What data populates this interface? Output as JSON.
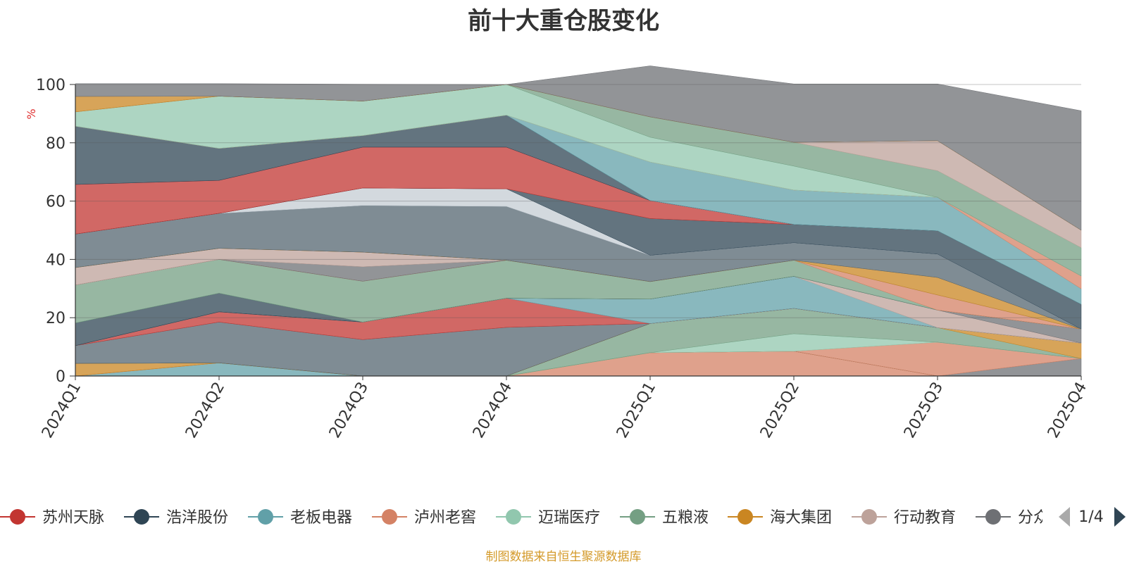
{
  "title": "前十大重仓股变化",
  "footnote": "制图数据来自恒生聚源数据库",
  "legend": {
    "items": [
      {
        "label": "苏州天脉",
        "color": "#c23531"
      },
      {
        "label": "浩洋股份",
        "color": "#2f4554"
      },
      {
        "label": "老板电器",
        "color": "#61a0a8"
      },
      {
        "label": "泸州老窖",
        "color": "#d48265"
      },
      {
        "label": "迈瑞医疗",
        "color": "#91c7ae"
      },
      {
        "label": "五粮液",
        "color": "#749f83"
      },
      {
        "label": "海大集团",
        "color": "#ca8622"
      },
      {
        "label": "行动教育",
        "color": "#bda29a"
      },
      {
        "label": "分众传媒",
        "color": "#6e7074"
      }
    ],
    "page_label": "1/4"
  },
  "chart_data": {
    "type": "area",
    "stacked": true,
    "categories": [
      "2024Q1",
      "2024Q2",
      "2024Q3",
      "2024Q4",
      "2025Q1",
      "2025Q2",
      "2025Q3",
      "2025Q4"
    ],
    "ylabel": "%",
    "ylim": [
      0,
      100
    ],
    "yticks": [
      0,
      20,
      40,
      60,
      80,
      100
    ],
    "grid": true,
    "layers": [
      {
        "color": "#61a0a8",
        "values": [
          0,
          4.5,
          0,
          0,
          0,
          0,
          0,
          0
        ]
      },
      {
        "color": "#d48265",
        "values": [
          0,
          0,
          0,
          0,
          8,
          8.5,
          0,
          0
        ]
      },
      {
        "color": "#ca8622",
        "values": [
          4.3,
          0,
          0,
          0,
          0,
          0,
          0,
          0
        ]
      },
      {
        "color": "#6e7074",
        "values": [
          0,
          0,
          0,
          0,
          0,
          0,
          0,
          6
        ]
      },
      {
        "color": "#d48265",
        "values": [
          0,
          0,
          0,
          0,
          0,
          0,
          11.6,
          0
        ]
      },
      {
        "color": "#91c7ae",
        "values": [
          0,
          0,
          0,
          0,
          0,
          6,
          0,
          0
        ]
      },
      {
        "color": "#749f83",
        "values": [
          0,
          0,
          0,
          0,
          10,
          8.7,
          5,
          0
        ]
      },
      {
        "color": "#ca8622",
        "values": [
          0,
          0,
          0,
          0,
          0,
          0,
          0,
          5.3
        ]
      },
      {
        "color": "#546570",
        "values": [
          6.1,
          14,
          12.5,
          16.7,
          0,
          0,
          0,
          0
        ]
      },
      {
        "color": "#c23531",
        "values": [
          0,
          3.5,
          6,
          10,
          0,
          0,
          0,
          0
        ]
      },
      {
        "color": "#61a0a8",
        "values": [
          0,
          0,
          0,
          0,
          8.4,
          11,
          0,
          0
        ]
      },
      {
        "color": "#bda29a",
        "values": [
          0,
          0,
          0,
          0,
          0,
          0,
          6,
          0
        ]
      },
      {
        "color": "#6e7074",
        "values": [
          0,
          0,
          0,
          0,
          0,
          0,
          0,
          4.8
        ]
      },
      {
        "color": "#2f4554",
        "values": [
          7.8,
          6.4,
          0,
          0,
          0,
          0,
          0,
          0
        ]
      },
      {
        "color": "#749f83",
        "values": [
          13,
          11.6,
          14,
          13,
          6,
          5.5,
          0,
          0
        ]
      },
      {
        "color": "#d48265",
        "values": [
          0,
          0,
          0,
          0,
          0,
          0,
          5.2,
          0
        ]
      },
      {
        "color": "#6e7074",
        "values": [
          0,
          0,
          5,
          0,
          0,
          0,
          0,
          0
        ]
      },
      {
        "color": "#bda29a",
        "values": [
          6,
          3.8,
          5,
          0,
          0,
          0,
          0,
          0
        ]
      },
      {
        "color": "#ca8622",
        "values": [
          0,
          0,
          0,
          0,
          0,
          0,
          6,
          0
        ]
      },
      {
        "color": "#546570",
        "values": [
          11.5,
          12,
          16,
          18.5,
          9,
          6,
          8,
          0
        ]
      },
      {
        "color": "#c4ccd3",
        "values": [
          0,
          0,
          6,
          6,
          0,
          0,
          0,
          0
        ]
      },
      {
        "color": "#2f4554",
        "values": [
          0,
          0,
          0,
          0,
          12.6,
          6.3,
          8,
          8.5
        ]
      },
      {
        "color": "#c23531",
        "values": [
          17,
          11.3,
          14,
          14.3,
          6.2,
          0,
          0,
          0
        ]
      },
      {
        "color": "#2f4554",
        "values": [
          20,
          11,
          4,
          11,
          0,
          0,
          0,
          0
        ]
      },
      {
        "color": "#61a0a8",
        "values": [
          0,
          0,
          0,
          0,
          13.2,
          11.8,
          11.5,
          5.3
        ]
      },
      {
        "color": "#d48265",
        "values": [
          0,
          0,
          0,
          0,
          0,
          0,
          0,
          4.4
        ]
      },
      {
        "color": "#91c7ae",
        "values": [
          4.9,
          17.9,
          11.8,
          10.5,
          8.5,
          8.2,
          0,
          0
        ]
      },
      {
        "color": "#749f83",
        "values": [
          0,
          0,
          0,
          0,
          7,
          8.2,
          9.1,
          9.7
        ]
      },
      {
        "color": "#bda29a",
        "values": [
          0,
          0,
          0,
          0,
          0,
          0,
          10.3,
          6
        ]
      },
      {
        "color": "#ca8622",
        "values": [
          5.3,
          0,
          0,
          0,
          0,
          0,
          0,
          0
        ]
      },
      {
        "color": "#6e7074",
        "values": [
          4.4,
          4.3,
          5.8,
          0,
          17.5,
          20,
          19.5,
          41
        ]
      }
    ]
  }
}
